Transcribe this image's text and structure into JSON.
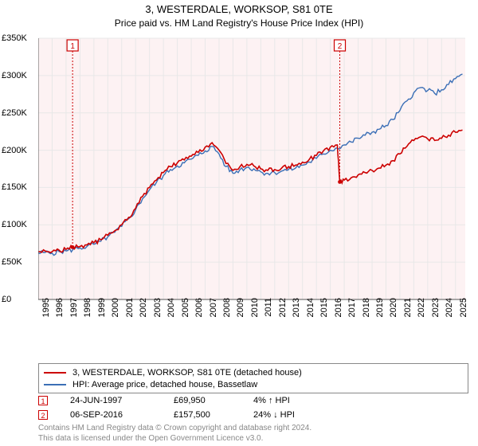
{
  "title": "3, WESTERDALE, WORKSOP, S81 0TE",
  "subtitle": "Price paid vs. HM Land Registry's House Price Index (HPI)",
  "chart": {
    "type": "line",
    "background_color": "#ffffff",
    "grid_color": "#e8e8e8",
    "axis_color": "#555555",
    "plot_bg_tint": "#fdf2f3",
    "ylim": [
      0,
      350000
    ],
    "ytick_step": 50000,
    "ytick_labels": [
      "£0",
      "£50K",
      "£100K",
      "£150K",
      "£200K",
      "£250K",
      "£300K",
      "£350K"
    ],
    "xlim": [
      1995,
      2025.7
    ],
    "xtick_step": 1,
    "xtick_labels": [
      "1995",
      "1996",
      "1997",
      "1998",
      "1999",
      "2000",
      "2001",
      "2002",
      "2003",
      "2004",
      "2005",
      "2006",
      "2007",
      "2008",
      "2009",
      "2010",
      "2011",
      "2012",
      "2013",
      "2014",
      "2015",
      "2016",
      "2017",
      "2018",
      "2019",
      "2020",
      "2021",
      "2022",
      "2023",
      "2024",
      "2025"
    ],
    "series": [
      {
        "name": "property",
        "label": "3, WESTERDALE, WORKSOP, S81 0TE (detached house)",
        "color": "#cc0000",
        "line_width": 1.6,
        "data": [
          [
            1995.0,
            64000
          ],
          [
            1995.5,
            65000
          ],
          [
            1996.0,
            64000
          ],
          [
            1996.5,
            66000
          ],
          [
            1997.0,
            67000
          ],
          [
            1997.47,
            69950
          ],
          [
            1998.0,
            71000
          ],
          [
            1998.5,
            73000
          ],
          [
            1999.0,
            76000
          ],
          [
            1999.5,
            80000
          ],
          [
            2000.0,
            86000
          ],
          [
            2000.5,
            92000
          ],
          [
            2001.0,
            100000
          ],
          [
            2001.5,
            110000
          ],
          [
            2002.0,
            122000
          ],
          [
            2002.5,
            138000
          ],
          [
            2003.0,
            150000
          ],
          [
            2003.5,
            160000
          ],
          [
            2004.0,
            170000
          ],
          [
            2004.5,
            178000
          ],
          [
            2005.0,
            183000
          ],
          [
            2005.5,
            187000
          ],
          [
            2006.0,
            192000
          ],
          [
            2006.5,
            197000
          ],
          [
            2007.0,
            204000
          ],
          [
            2007.5,
            210000
          ],
          [
            2008.0,
            200000
          ],
          [
            2008.5,
            182000
          ],
          [
            2009.0,
            173000
          ],
          [
            2009.5,
            178000
          ],
          [
            2010.0,
            181000
          ],
          [
            2010.5,
            179000
          ],
          [
            2011.0,
            175000
          ],
          [
            2011.5,
            173000
          ],
          [
            2012.0,
            174000
          ],
          [
            2012.5,
            176000
          ],
          [
            2013.0,
            178000
          ],
          [
            2013.5,
            180000
          ],
          [
            2014.0,
            184000
          ],
          [
            2014.5,
            188000
          ],
          [
            2015.0,
            193000
          ],
          [
            2015.5,
            199000
          ],
          [
            2016.0,
            204000
          ],
          [
            2016.5,
            207000
          ],
          [
            2016.68,
            157500
          ],
          [
            2017.0,
            160000
          ],
          [
            2017.5,
            163000
          ],
          [
            2018.0,
            167000
          ],
          [
            2018.5,
            170000
          ],
          [
            2019.0,
            173000
          ],
          [
            2019.5,
            176000
          ],
          [
            2020.0,
            180000
          ],
          [
            2020.5,
            186000
          ],
          [
            2021.0,
            195000
          ],
          [
            2021.5,
            205000
          ],
          [
            2022.0,
            213000
          ],
          [
            2022.5,
            218000
          ],
          [
            2023.0,
            215000
          ],
          [
            2023.5,
            213000
          ],
          [
            2024.0,
            216000
          ],
          [
            2024.5,
            220000
          ],
          [
            2025.0,
            224000
          ],
          [
            2025.5,
            227000
          ]
        ]
      },
      {
        "name": "hpi",
        "label": "HPI: Average price, detached house, Bassetlaw",
        "color": "#3b6fb6",
        "line_width": 1.4,
        "data": [
          [
            1995.0,
            62000
          ],
          [
            1995.5,
            63000
          ],
          [
            1996.0,
            62000
          ],
          [
            1996.5,
            64000
          ],
          [
            1997.0,
            65000
          ],
          [
            1997.5,
            67000
          ],
          [
            1998.0,
            69000
          ],
          [
            1998.5,
            71000
          ],
          [
            1999.0,
            74000
          ],
          [
            1999.5,
            78000
          ],
          [
            2000.0,
            84000
          ],
          [
            2000.5,
            90000
          ],
          [
            2001.0,
            98000
          ],
          [
            2001.5,
            108000
          ],
          [
            2002.0,
            120000
          ],
          [
            2002.5,
            135000
          ],
          [
            2003.0,
            147000
          ],
          [
            2003.5,
            157000
          ],
          [
            2004.0,
            166000
          ],
          [
            2004.5,
            174000
          ],
          [
            2005.0,
            179000
          ],
          [
            2005.5,
            183000
          ],
          [
            2006.0,
            188000
          ],
          [
            2006.5,
            193000
          ],
          [
            2007.0,
            199000
          ],
          [
            2007.5,
            205000
          ],
          [
            2008.0,
            195000
          ],
          [
            2008.5,
            178000
          ],
          [
            2009.0,
            169000
          ],
          [
            2009.5,
            174000
          ],
          [
            2010.0,
            177000
          ],
          [
            2010.5,
            175000
          ],
          [
            2011.0,
            171000
          ],
          [
            2011.5,
            169000
          ],
          [
            2012.0,
            170000
          ],
          [
            2012.5,
            172000
          ],
          [
            2013.0,
            174000
          ],
          [
            2013.5,
            176000
          ],
          [
            2014.0,
            180000
          ],
          [
            2014.5,
            184000
          ],
          [
            2015.0,
            189000
          ],
          [
            2015.5,
            195000
          ],
          [
            2016.0,
            200000
          ],
          [
            2016.5,
            203000
          ],
          [
            2017.0,
            207000
          ],
          [
            2017.5,
            211000
          ],
          [
            2018.0,
            216000
          ],
          [
            2018.5,
            220000
          ],
          [
            2019.0,
            224000
          ],
          [
            2019.5,
            228000
          ],
          [
            2020.0,
            233000
          ],
          [
            2020.5,
            241000
          ],
          [
            2021.0,
            253000
          ],
          [
            2021.5,
            266000
          ],
          [
            2022.0,
            277000
          ],
          [
            2022.5,
            284000
          ],
          [
            2023.0,
            280000
          ],
          [
            2023.5,
            276000
          ],
          [
            2024.0,
            281000
          ],
          [
            2024.5,
            288000
          ],
          [
            2025.0,
            296000
          ],
          [
            2025.5,
            302000
          ]
        ]
      }
    ],
    "markers": [
      {
        "id": "1",
        "x": 1997.47,
        "y": 69950,
        "box_color": "#cc0000",
        "line_color": "#cc0000"
      },
      {
        "id": "2",
        "x": 2016.68,
        "y": 157500,
        "box_color": "#cc0000",
        "line_color": "#cc0000"
      }
    ]
  },
  "legend": {
    "border_color": "#888888",
    "items": [
      {
        "color": "#cc0000",
        "label": "3, WESTERDALE, WORKSOP, S81 0TE (detached house)"
      },
      {
        "color": "#3b6fb6",
        "label": "HPI: Average price, detached house, Bassetlaw"
      }
    ]
  },
  "datapoints": [
    {
      "marker": "1",
      "date": "24-JUN-1997",
      "price": "£69,950",
      "delta": "4% ↑ HPI",
      "arrow": "up"
    },
    {
      "marker": "2",
      "date": "06-SEP-2016",
      "price": "£157,500",
      "delta": "24% ↓ HPI",
      "arrow": "down"
    }
  ],
  "footer": {
    "line1": "Contains HM Land Registry data © Crown copyright and database right 2024.",
    "line2": "This data is licensed under the Open Government Licence v3.0."
  }
}
